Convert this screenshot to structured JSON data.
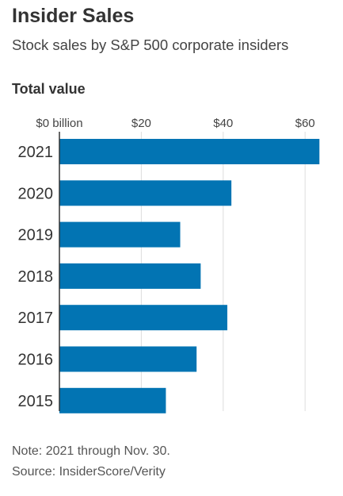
{
  "header": {
    "title": "Insider Sales",
    "subtitle": "Stock sales by S&P 500 corporate insiders"
  },
  "panel": {
    "title": "Total value"
  },
  "chart_data": {
    "type": "bar",
    "orientation": "horizontal",
    "title": "Insider Sales",
    "subtitle": "Stock sales by S&P 500 corporate insiders",
    "panel_title": "Total value",
    "categories": [
      "2021",
      "2020",
      "2019",
      "2018",
      "2017",
      "2016",
      "2015"
    ],
    "values": [
      63.5,
      42,
      29.5,
      34.5,
      41,
      33.5,
      26
    ],
    "unit": "billion USD",
    "xlim": [
      0,
      65
    ],
    "x_ticks": [
      0,
      20,
      40,
      60
    ],
    "x_tick_labels": [
      "$0 billion",
      "$20",
      "$40",
      "$60"
    ],
    "grid": "vertical",
    "bar_color": "#0274b3",
    "axis_color": "#333333",
    "grid_color": "#dddddd"
  },
  "footer": {
    "note": "Note: 2021 through Nov. 30.",
    "source": "Source: InsiderScore/Verity"
  }
}
